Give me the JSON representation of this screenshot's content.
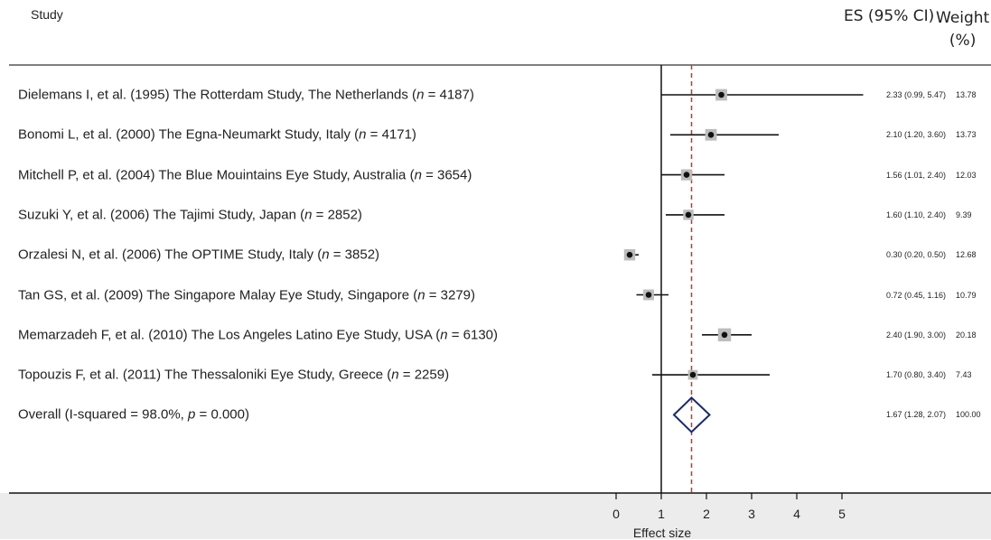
{
  "headers": {
    "study": "Study",
    "es": "ES (95% CI)",
    "weight_line1": "Weight",
    "weight_line2": "(%)"
  },
  "colors": {
    "reference_line": "#c0392b",
    "diamond": "#1a2a6c",
    "weight_box": "#bdbdbd",
    "bottom_band": "#ececec"
  },
  "chart_data": {
    "type": "forest",
    "xlabel": "Effect size",
    "xlim": [
      -0.1,
      5.5
    ],
    "xticks": [
      0,
      1,
      2,
      3,
      4,
      5
    ],
    "null_line": 1,
    "overall_line": 1.67,
    "studies": [
      {
        "author": "Dielemans I, et al. (1995) The Rotterdam Study, The Netherlands (",
        "n": " = 4187)",
        "es": 2.33,
        "lo": 0.99,
        "hi": 5.47,
        "es_text": "2.33 (0.99, 5.47)",
        "weight": 13.78,
        "weight_text": "13.78"
      },
      {
        "author": "Bonomi L, et al. (2000) The Egna-Neumarkt Study, Italy (",
        "n": " = 4171)",
        "es": 2.1,
        "lo": 1.2,
        "hi": 3.6,
        "es_text": "2.10 (1.20, 3.60)",
        "weight": 13.73,
        "weight_text": "13.73"
      },
      {
        "author": "Mitchell P, et al. (2004) The Blue Mouintains Eye Study, Australia (",
        "n": " = 3654)",
        "es": 1.56,
        "lo": 1.01,
        "hi": 2.4,
        "es_text": "1.56 (1.01, 2.40)",
        "weight": 12.03,
        "weight_text": "12.03"
      },
      {
        "author": "Suzuki Y, et al. (2006) The Tajimi Study, Japan (",
        "n": " = 2852)",
        "es": 1.6,
        "lo": 1.1,
        "hi": 2.4,
        "es_text": "1.60 (1.10, 2.40)",
        "weight": 9.39,
        "weight_text": "9.39"
      },
      {
        "author": "Orzalesi N, et al. (2006) The OPTIME Study, Italy (",
        "n": " = 3852)",
        "es": 0.3,
        "lo": 0.2,
        "hi": 0.5,
        "es_text": "0.30 (0.20, 0.50)",
        "weight": 12.68,
        "weight_text": "12.68"
      },
      {
        "author": "Tan GS, et al. (2009) The Singapore Malay Eye Study, Singapore (",
        "n": " = 3279)",
        "es": 0.72,
        "lo": 0.45,
        "hi": 1.16,
        "es_text": "0.72 (0.45, 1.16)",
        "weight": 10.79,
        "weight_text": "10.79"
      },
      {
        "author": "Memarzadeh F, et al. (2010) The Los Angeles Latino Eye Study, USA (",
        "n": " = 6130)",
        "es": 2.4,
        "lo": 1.9,
        "hi": 3.0,
        "es_text": "2.40 (1.90, 3.00)",
        "weight": 20.18,
        "weight_text": "20.18"
      },
      {
        "author": "Topouzis F, et al. (2011) The Thessaloniki Eye Study, Greece (",
        "n": " = 2259)",
        "es": 1.7,
        "lo": 0.8,
        "hi": 3.4,
        "es_text": "1.70 (0.80, 3.40)",
        "weight": 7.43,
        "weight_text": "7.43"
      }
    ],
    "overall": {
      "label_prefix": "Overall  (I-squared = 98.0%, ",
      "p_text": " = 0.000)",
      "es": 1.67,
      "lo": 1.28,
      "hi": 2.07,
      "es_text": "1.67 (1.28, 2.07)",
      "weight_text": "100.00"
    }
  }
}
